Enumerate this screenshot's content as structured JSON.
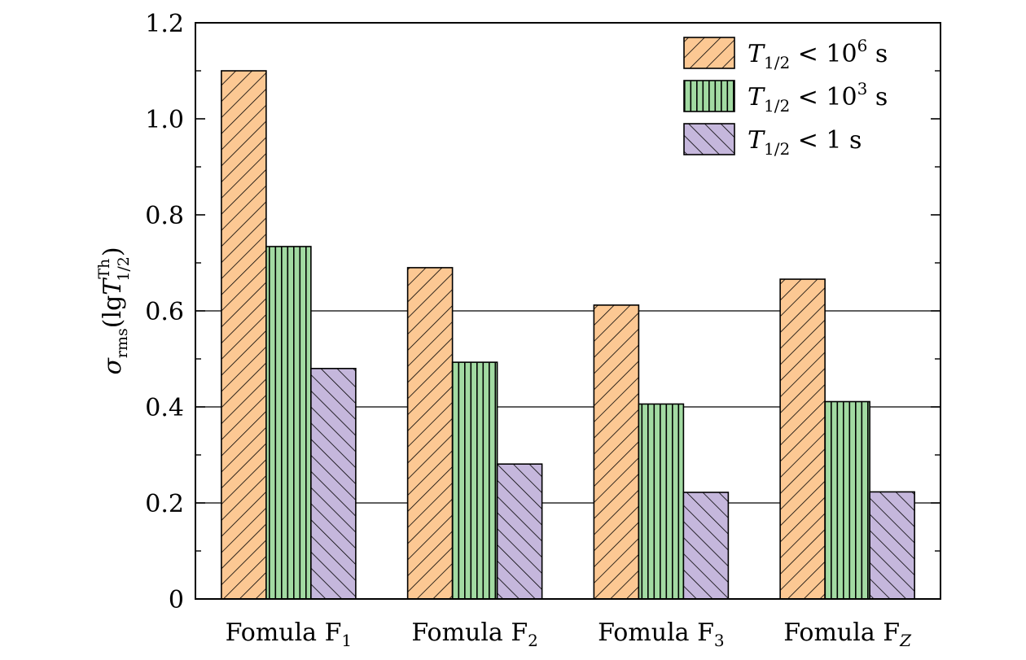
{
  "chart_data": {
    "type": "bar",
    "title": "",
    "categories": [
      "Fomula F1",
      "Fomula F2",
      "Fomula F3",
      "Fomula FZ"
    ],
    "category_parts": [
      {
        "main": "Fomula F",
        "sub": "1",
        "sub_italic": false
      },
      {
        "main": "Fomula F",
        "sub": "2",
        "sub_italic": false
      },
      {
        "main": "Fomula F",
        "sub": "3",
        "sub_italic": false
      },
      {
        "main": "Fomula F",
        "sub": "Z",
        "sub_italic": true
      }
    ],
    "series": [
      {
        "name": "T1/2 < 10^6 s",
        "values": [
          1.1,
          0.69,
          0.612,
          0.666
        ],
        "label": {
          "sym": "T",
          "sub": "1/2",
          "rel": " < 10",
          "sup": "6",
          "unit": " s"
        },
        "color": "#fcc893",
        "pattern": "diag-fwd"
      },
      {
        "name": "T1/2 < 10^3 s",
        "values": [
          0.734,
          0.493,
          0.406,
          0.411
        ],
        "label": {
          "sym": "T",
          "sub": "1/2",
          "rel": " < 10",
          "sup": "3",
          "unit": " s"
        },
        "color": "#a2daa2",
        "pattern": "vertical"
      },
      {
        "name": "T1/2 < 1 s",
        "values": [
          0.48,
          0.281,
          0.222,
          0.223
        ],
        "label": {
          "sym": "T",
          "sub": "1/2",
          "rel": " < 1 s",
          "sup": "",
          "unit": ""
        },
        "color": "#c5b7dc",
        "pattern": "diag-back"
      }
    ],
    "ylabel": "σrms(lgT1/2Th)",
    "ylabel_parts": {
      "sigma": "σ",
      "sub": "rms",
      "open": "(lg",
      "T": "T",
      "sup": "Th",
      "Tsub": "1/2",
      "close": ")"
    },
    "ylim": [
      0,
      1.2
    ],
    "yticks": [
      0,
      0.2,
      0.4,
      0.6,
      0.8,
      1.0,
      1.2
    ],
    "ytick_labels": [
      "0",
      "0.2",
      "0.4",
      "0.6",
      "0.8",
      "1.0",
      "1.2"
    ],
    "grid_lines_at": [
      0.2,
      0.4,
      0.6
    ],
    "legend_position": "top-right"
  }
}
